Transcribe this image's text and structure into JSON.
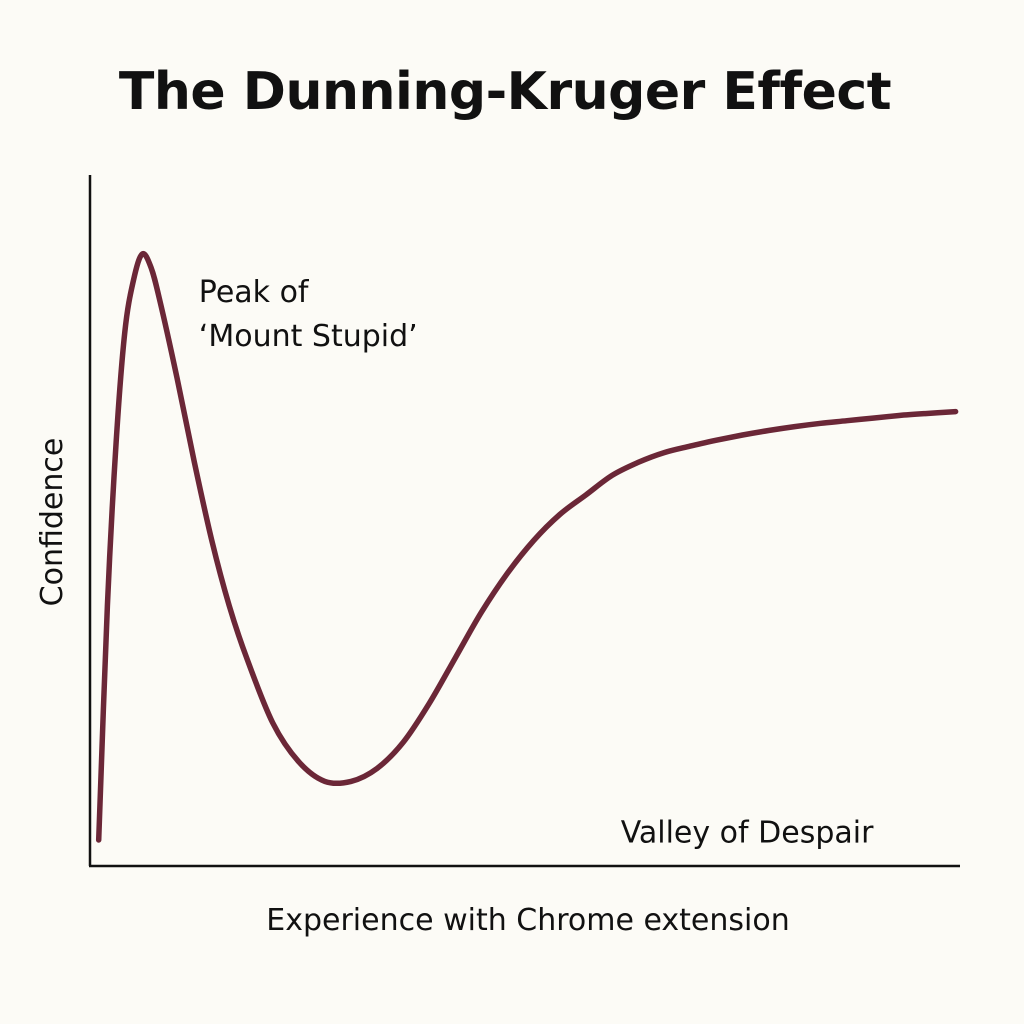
{
  "chart_data": {
    "type": "line",
    "title": "The Dunning-Kruger Effect",
    "xlabel": "Experience with Chrome extension",
    "ylabel": "Confidence",
    "xlim": [
      0,
      100
    ],
    "ylim": [
      0,
      100
    ],
    "grid": false,
    "ticks": false,
    "line_color": "#6b2737",
    "axis_color": "#111111",
    "series": [
      {
        "x": [
          1,
          2,
          3,
          4,
          5,
          6,
          7,
          8,
          10,
          12,
          14,
          16,
          18,
          21,
          24,
          27,
          30,
          33,
          36,
          39,
          42,
          45,
          48,
          51,
          54,
          57,
          60,
          63,
          66,
          69,
          72,
          75,
          78,
          81,
          84,
          87,
          90,
          93,
          96,
          99.5
        ],
        "y": [
          4,
          40,
          65,
          82,
          90,
          94,
          92,
          87,
          75,
          62,
          50,
          40,
          32,
          22,
          16,
          13,
          13,
          15,
          19,
          25,
          32,
          39,
          45,
          50,
          54,
          57,
          60,
          62,
          63.5,
          64.5,
          65.4,
          66.2,
          66.9,
          67.5,
          68,
          68.4,
          68.8,
          69.2,
          69.5,
          69.8
        ]
      }
    ],
    "annotations": [
      {
        "id": "peak",
        "lines": [
          "Peak of",
          "‘Mount Stupid’"
        ],
        "x": 12.5,
        "y": 90
      },
      {
        "id": "valley",
        "lines": [
          "Valley of Despair"
        ],
        "x": 61,
        "y": 7
      }
    ]
  }
}
